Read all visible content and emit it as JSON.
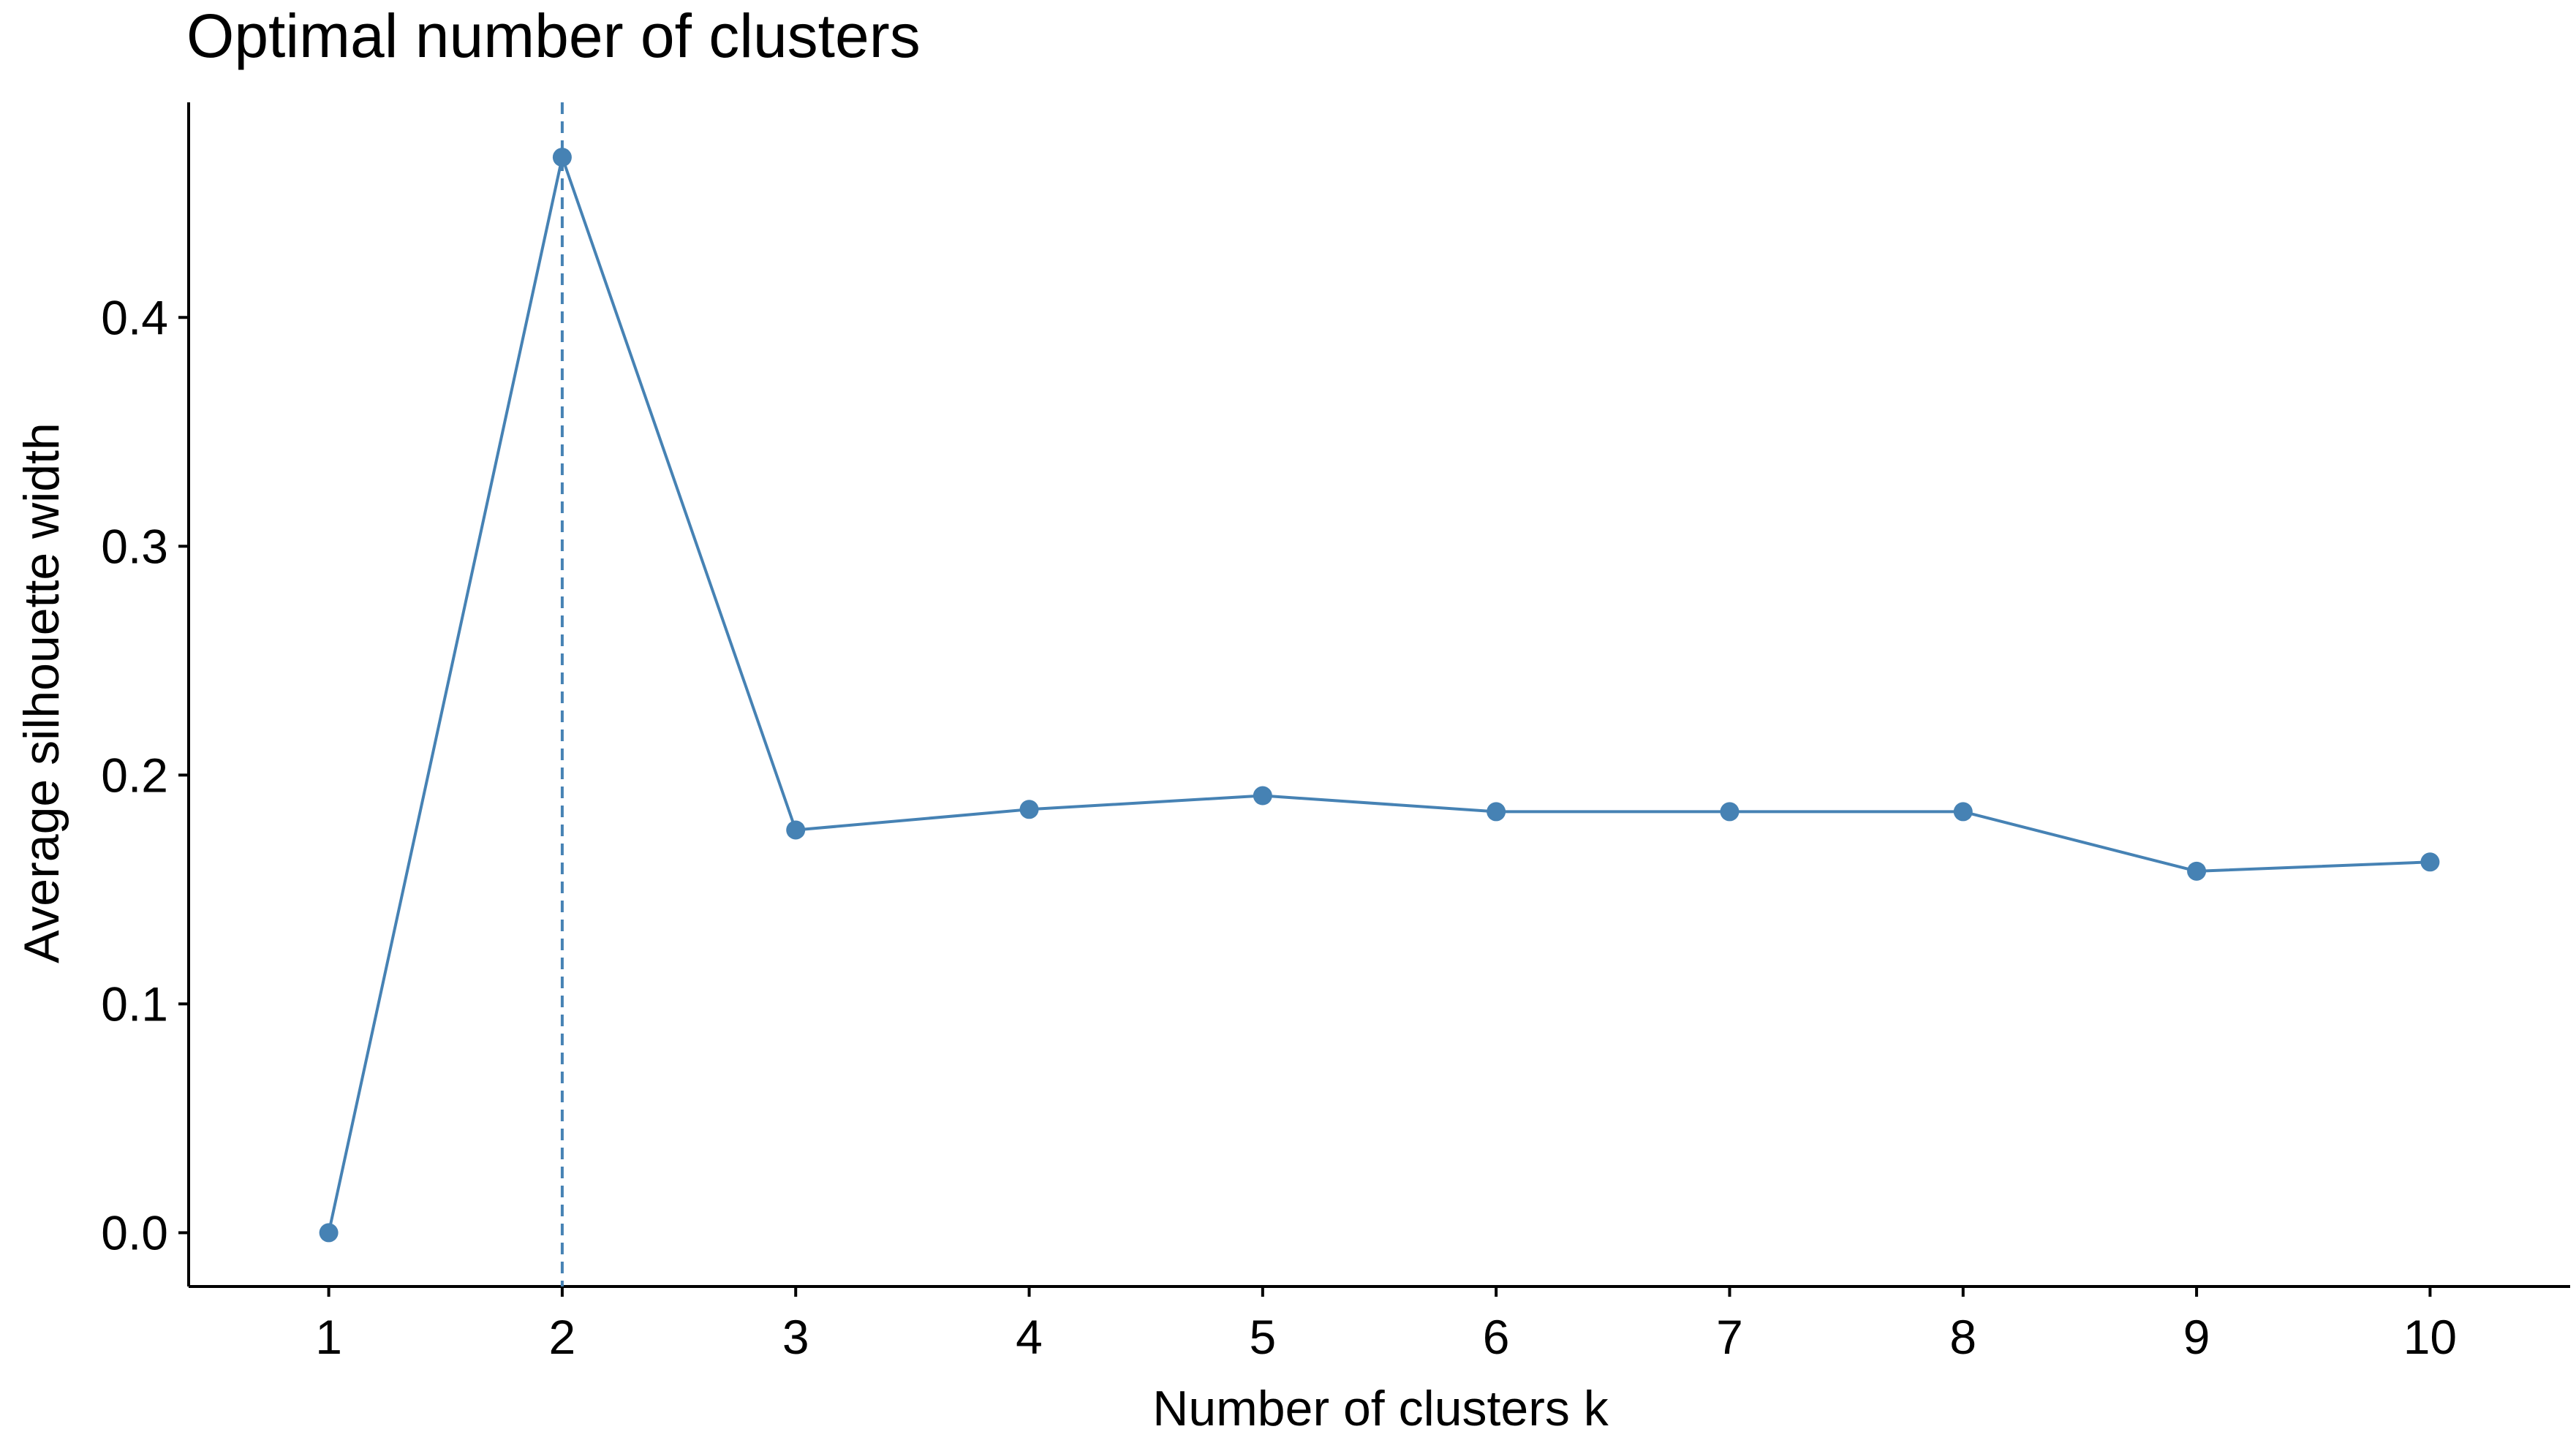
{
  "chart_data": {
    "type": "line",
    "title": "Optimal number of clusters",
    "xlabel": "Number of clusters k",
    "ylabel": "Average silhouette width",
    "categories": [
      "1",
      "2",
      "3",
      "4",
      "5",
      "6",
      "7",
      "8",
      "9",
      "10"
    ],
    "x": [
      1,
      2,
      3,
      4,
      5,
      6,
      7,
      8,
      9,
      10
    ],
    "series": [
      {
        "values": [
          0.0,
          0.47,
          0.176,
          0.185,
          0.191,
          0.184,
          0.184,
          0.184,
          0.158,
          0.162
        ]
      }
    ],
    "yticks": [
      0.0,
      0.1,
      0.2,
      0.3,
      0.4
    ],
    "ytick_labels": [
      "0.0",
      "0.1",
      "0.2",
      "0.3",
      "0.4"
    ],
    "xlim": [
      0.4,
      10.6
    ],
    "ylim": [
      -0.0235,
      0.494
    ],
    "optimal_k": 2,
    "grid": false,
    "legend": "none",
    "colors": {
      "series": "#4682B4",
      "axis": "#000000",
      "background": "#ffffff"
    }
  }
}
